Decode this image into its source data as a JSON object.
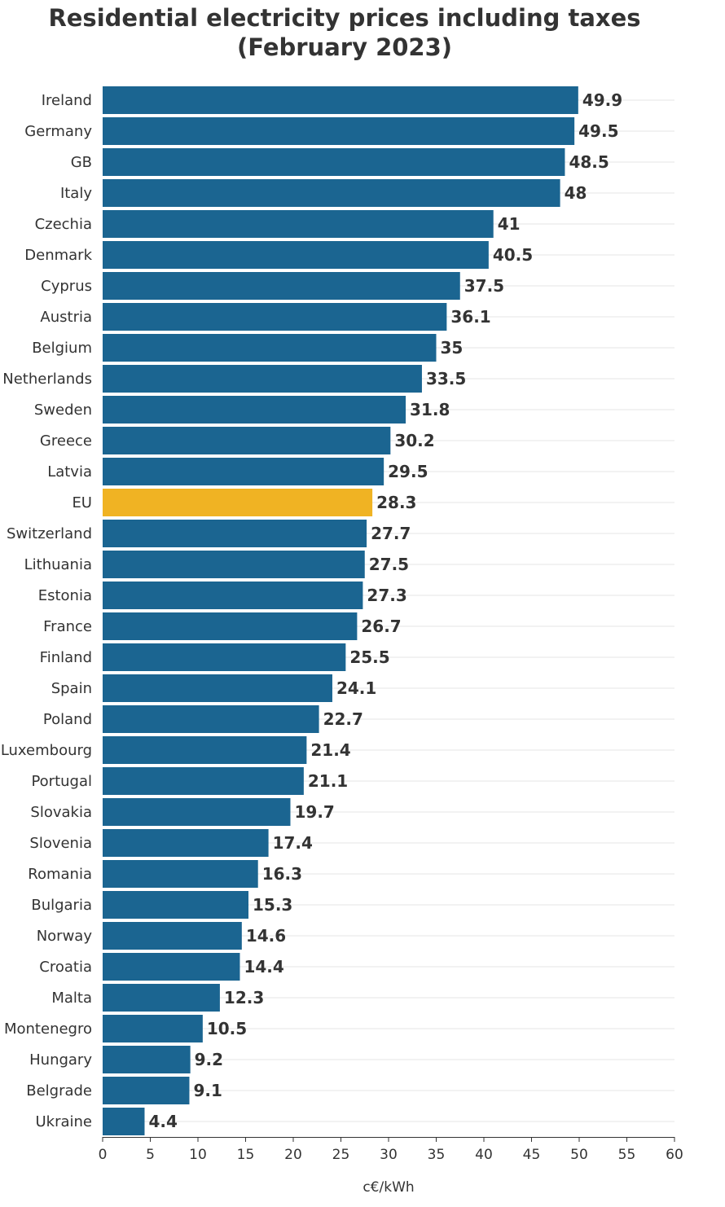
{
  "chart_data": {
    "type": "bar",
    "orientation": "horizontal",
    "title": "Residential electricity prices including taxes (February 2023)",
    "xlabel": "c€/kWh",
    "ylabel": "",
    "xlim": [
      0,
      60
    ],
    "xticks": [
      0,
      5,
      10,
      15,
      20,
      25,
      30,
      35,
      40,
      45,
      50,
      55,
      60
    ],
    "grid": true,
    "colors": {
      "default": "#1b6591",
      "highlight": "#f0b323",
      "grid": "#e4e4e4"
    },
    "highlight_category": "EU",
    "categories": [
      "Ireland",
      "Germany",
      "GB",
      "Italy",
      "Czechia",
      "Denmark",
      "Cyprus",
      "Austria",
      "Belgium",
      "Netherlands",
      "Sweden",
      "Greece",
      "Latvia",
      "EU",
      "Switzerland",
      "Lithuania",
      "Estonia",
      "France",
      "Finland",
      "Spain",
      "Poland",
      "Luxembourg",
      "Portugal",
      "Slovakia",
      "Slovenia",
      "Romania",
      "Bulgaria",
      "Norway",
      "Croatia",
      "Malta",
      "Montenegro",
      "Hungary",
      "Belgrade",
      "Ukraine"
    ],
    "values": [
      49.9,
      49.5,
      48.5,
      48,
      41,
      40.5,
      37.5,
      36.1,
      35,
      33.5,
      31.8,
      30.2,
      29.5,
      28.3,
      27.7,
      27.5,
      27.3,
      26.7,
      25.5,
      24.1,
      22.7,
      21.4,
      21.1,
      19.7,
      17.4,
      16.3,
      15.3,
      14.6,
      14.4,
      12.3,
      10.5,
      9.2,
      9.1,
      4.4
    ],
    "value_labels": [
      "49.9",
      "49.5",
      "48.5",
      "48",
      "41",
      "40.5",
      "37.5",
      "36.1",
      "35",
      "33.5",
      "31.8",
      "30.2",
      "29.5",
      "28.3",
      "27.7",
      "27.5",
      "27.3",
      "26.7",
      "25.5",
      "24.1",
      "22.7",
      "21.4",
      "21.1",
      "19.7",
      "17.4",
      "16.3",
      "15.3",
      "14.6",
      "14.4",
      "12.3",
      "10.5",
      "9.2",
      "9.1",
      "4.4"
    ]
  }
}
